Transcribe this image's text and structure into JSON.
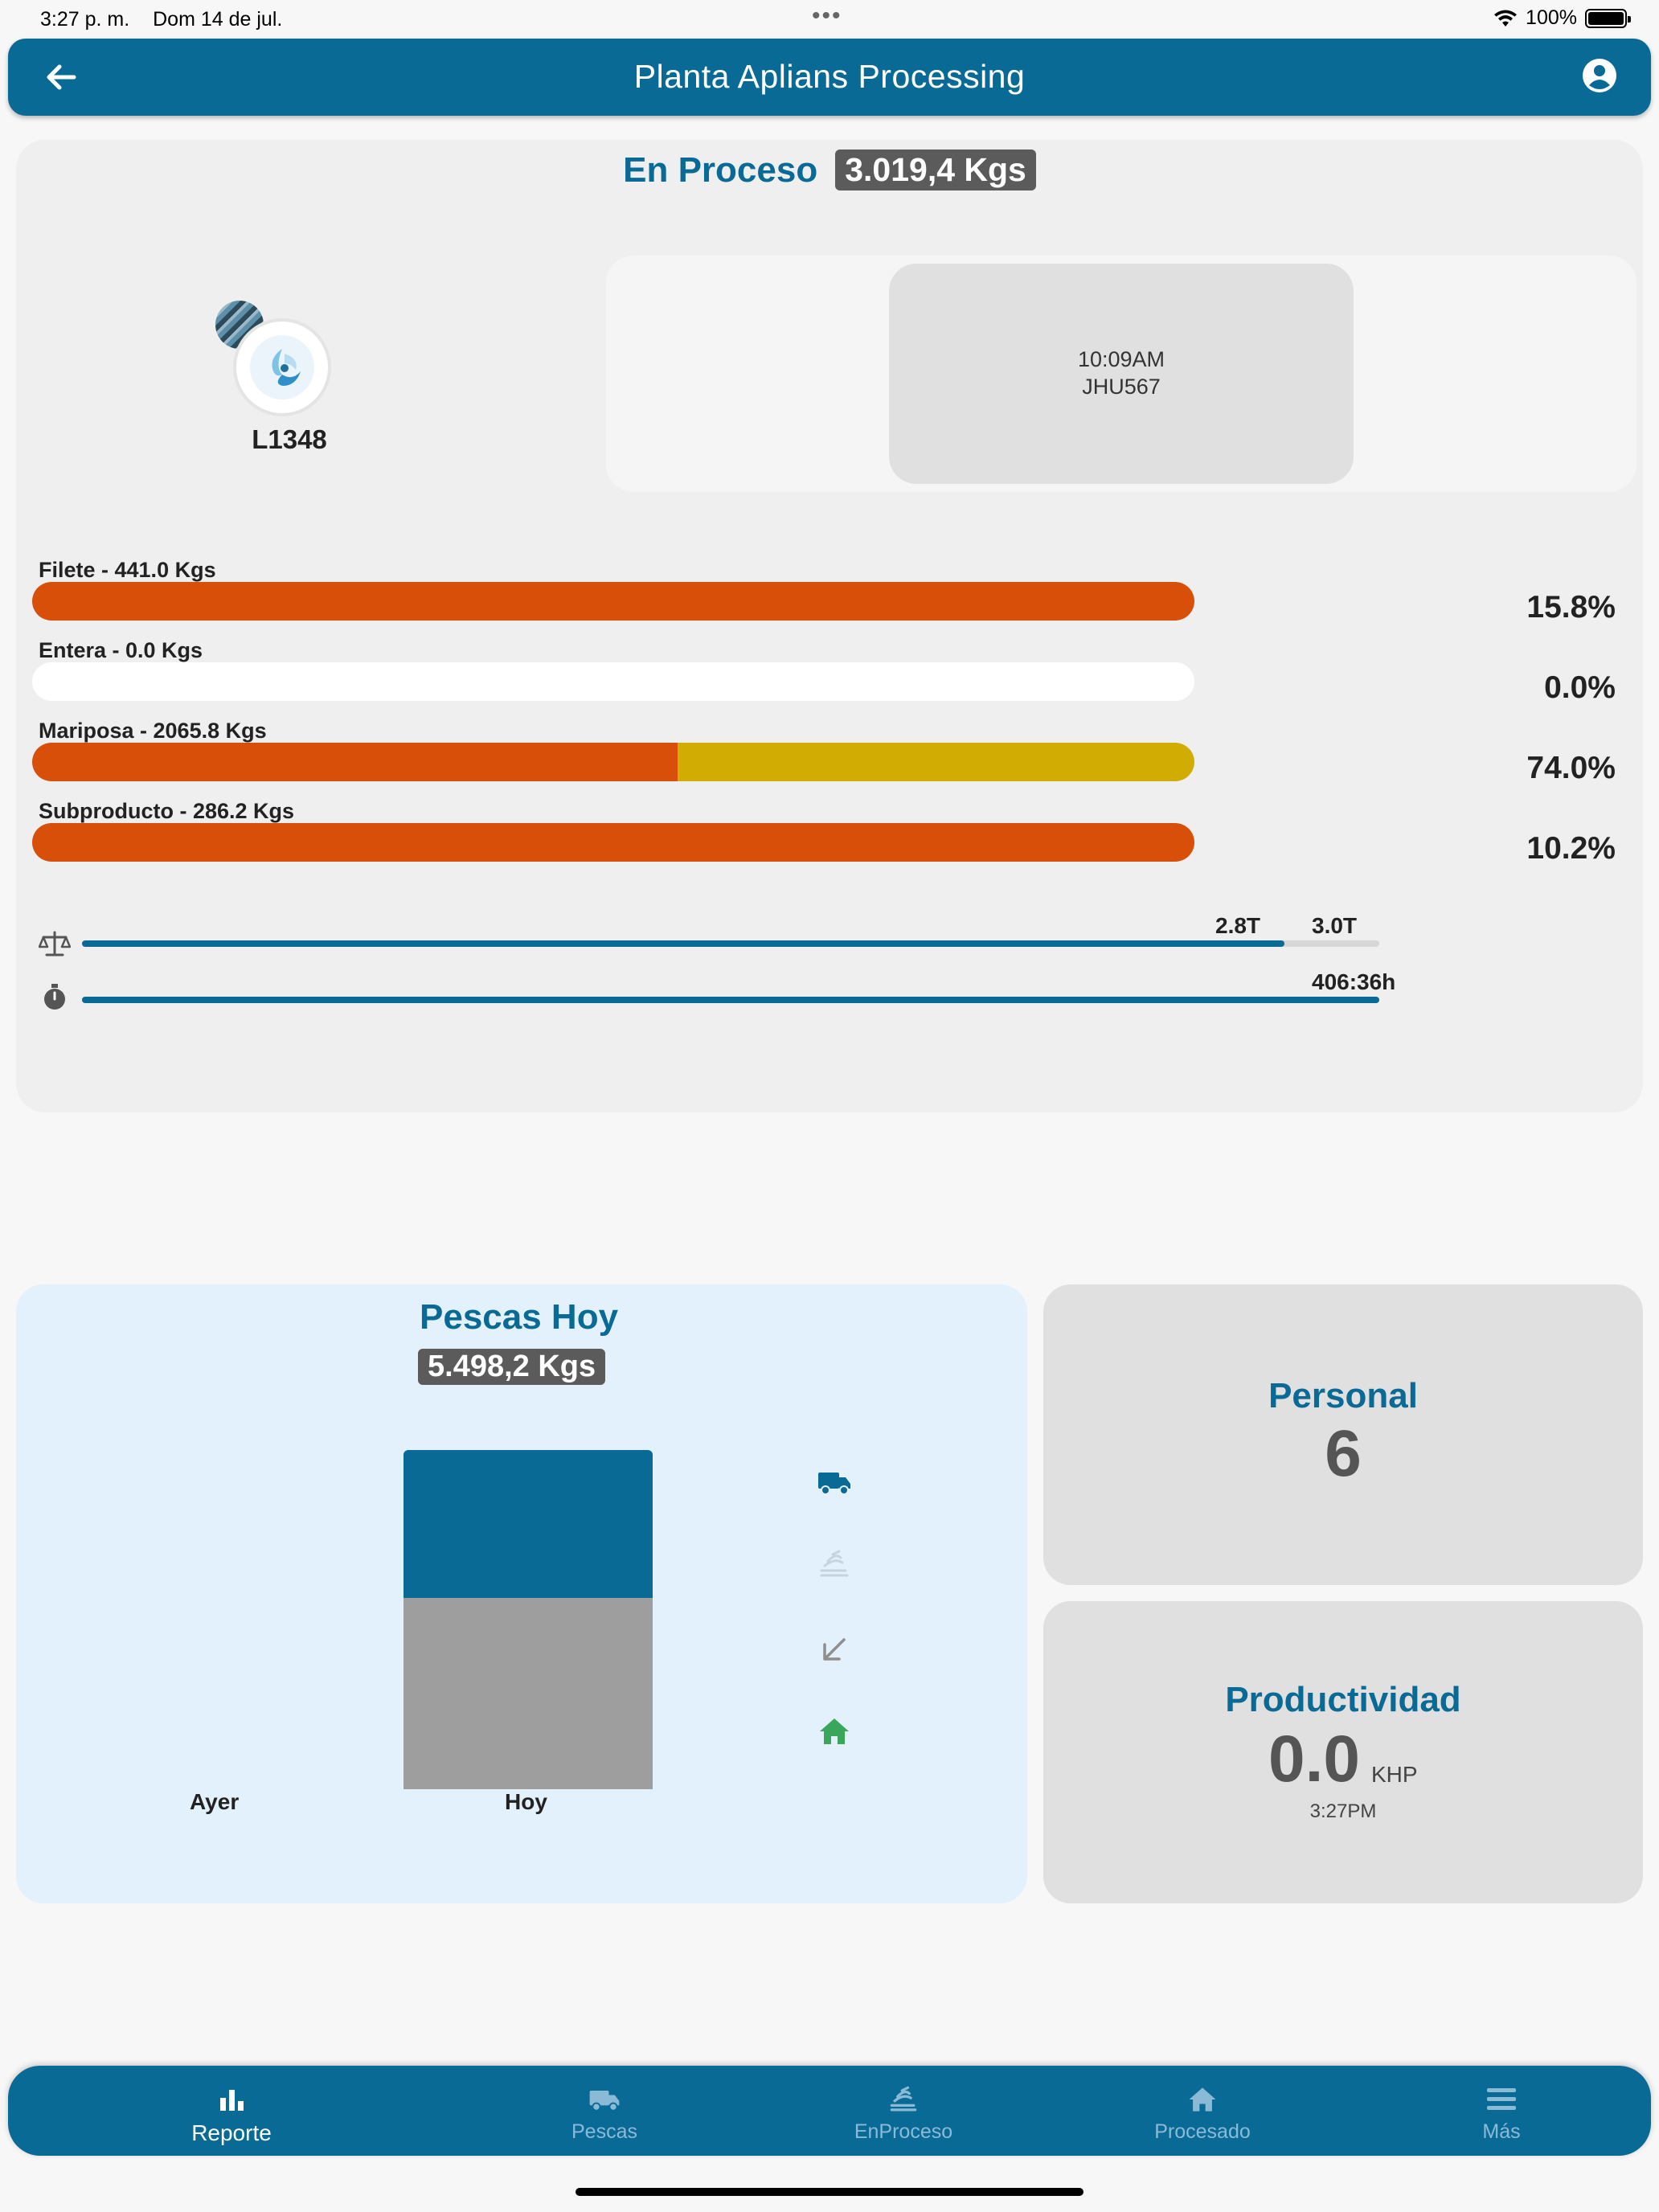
{
  "status_bar": {
    "time": "3:27 p. m.",
    "date": "Dom 14 de jul.",
    "battery": "100%"
  },
  "header": {
    "title": "Planta Aplians Processing"
  },
  "in_process": {
    "label": "En Proceso",
    "total": "3.019,4 Kgs",
    "lot": "L1348",
    "truck": {
      "time": "10:09AM",
      "plate": "JHU567"
    },
    "products": [
      {
        "label": "Filete - 441.0 Kgs",
        "percent": "15.8%",
        "fill_fraction": 1.0,
        "split_fraction": null
      },
      {
        "label": "Entera - 0.0 Kgs",
        "percent": "0.0%",
        "fill_fraction": 0.0,
        "split_fraction": null
      },
      {
        "label": "Mariposa - 2065.8 Kgs",
        "percent": "74.0%",
        "fill_fraction": 1.0,
        "split_fraction": 0.555
      },
      {
        "label": "Subproducto - 286.2 Kgs",
        "percent": "10.2%",
        "fill_fraction": 1.0,
        "split_fraction": null
      }
    ],
    "weight_meter": {
      "current": "2.8T",
      "target": "3.0T",
      "fill_fraction": 0.927
    },
    "time_meter": {
      "value": "406:36h",
      "fill_fraction": 1.0
    }
  },
  "pescas": {
    "title": "Pescas Hoy",
    "total": "5.498,2  Kgs",
    "chart_data": {
      "type": "bar",
      "categories": [
        "Ayer",
        "Hoy"
      ],
      "series": [
        {
          "values": [
            0,
            2.4
          ]
        },
        {
          "values": [
            0,
            3.1
          ]
        }
      ]
    },
    "side_icons": [
      "truck-icon",
      "stacked-fish-icon",
      "arrow-down-left-icon",
      "home-icon"
    ]
  },
  "personal": {
    "title": "Personal",
    "value": "6"
  },
  "productividad": {
    "title": "Productividad",
    "value": "0.0",
    "unit": "KHP",
    "time": "3:27PM"
  },
  "bottom_nav": [
    {
      "label": "Reporte",
      "icon": "bar-chart-icon",
      "active": true
    },
    {
      "label": "Pescas",
      "icon": "truck-icon",
      "active": false
    },
    {
      "label": "EnProceso",
      "icon": "stacked-fish-icon",
      "active": false
    },
    {
      "label": "Procesado",
      "icon": "home-icon",
      "active": false
    },
    {
      "label": "Más",
      "icon": "menu-icon",
      "active": false
    }
  ],
  "colors": {
    "primary": "#0a6a96",
    "orange": "#d84f0a",
    "gold": "#d1ad04",
    "gray_bar": "#9e9e9e",
    "green": "#3aa65a"
  }
}
